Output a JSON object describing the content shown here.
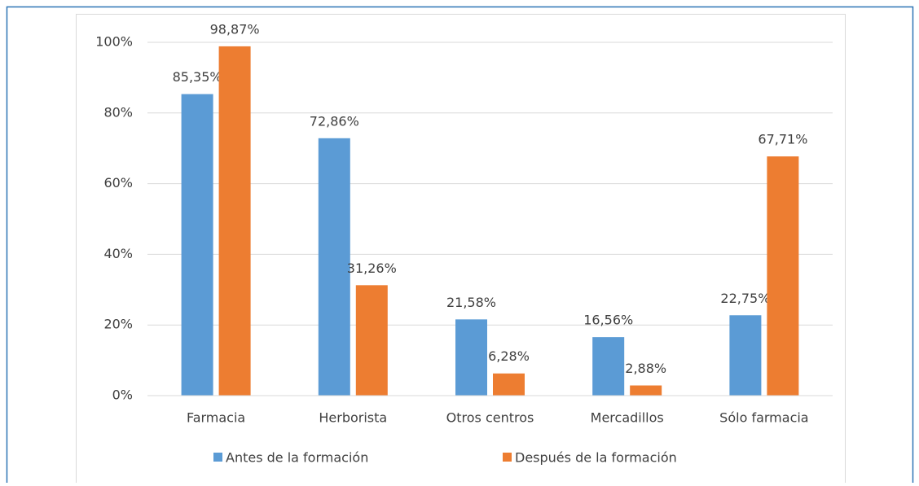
{
  "chart_data": {
    "type": "bar",
    "categories": [
      "Farmacia",
      "Herborista",
      "Otros centros",
      "Mercadillos",
      "Sólo farmacia"
    ],
    "series": [
      {
        "name": "Antes de la formación",
        "color": "#5b9bd5",
        "values": [
          85.35,
          72.86,
          21.58,
          16.56,
          22.75
        ],
        "value_labels": [
          "85,35%",
          "72,86%",
          "21,58%",
          "16,56%",
          "22,75%"
        ]
      },
      {
        "name": "Después de la formación",
        "color": "#ed7d31",
        "values": [
          98.87,
          31.26,
          6.28,
          2.88,
          67.71
        ],
        "value_labels": [
          "98,87%",
          "31,26%",
          "6,28%",
          "2,88%",
          "67,71%"
        ]
      }
    ],
    "ylim": [
      0,
      100
    ],
    "yticks": [
      {
        "value": 0,
        "label": "0%"
      },
      {
        "value": 20,
        "label": "20%"
      },
      {
        "value": 40,
        "label": "40%"
      },
      {
        "value": 60,
        "label": "60%"
      },
      {
        "value": 80,
        "label": "80%"
      },
      {
        "value": 100,
        "label": "100%"
      }
    ],
    "grid": true,
    "legend": "bottom"
  }
}
